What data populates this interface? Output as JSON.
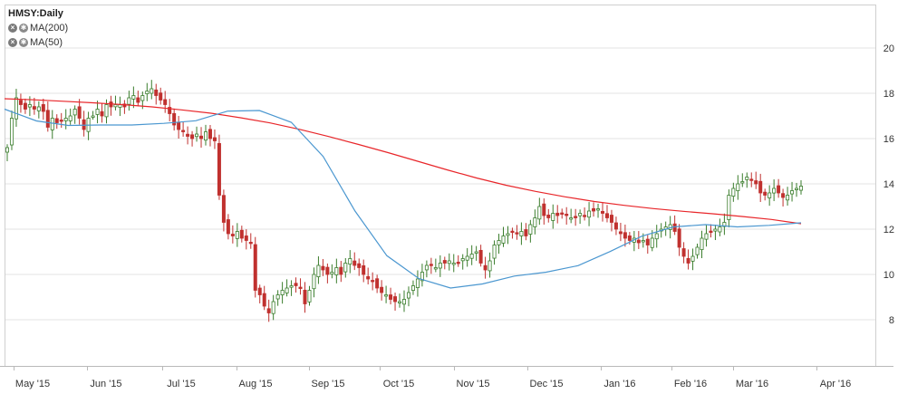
{
  "chart_data": {
    "type": "candlestick",
    "title": "HMSY:Daily",
    "indicators": [
      {
        "name": "MA(200)",
        "color": "#e8262a"
      },
      {
        "name": "MA(50)",
        "color": "#4b97d0"
      }
    ],
    "x_tick_labels": [
      "May '15",
      "Jun '15",
      "Jul '15",
      "Aug '15",
      "Sep '15",
      "Oct '15",
      "Nov '15",
      "Dec '15",
      "Jan '16",
      "Feb '16",
      "Mar '16",
      "Apr '16"
    ],
    "y_tick_labels": [
      8,
      10,
      12,
      14,
      16,
      18,
      20
    ],
    "ylim": [
      5,
      22
    ],
    "y_axis_side": "right",
    "grid": "horizontal",
    "colors": {
      "up": "#3a7d2c",
      "down": "#c0312f",
      "grid": "#e3e3e3"
    },
    "closes": [
      15.6,
      16.9,
      17.8,
      17.5,
      17.3,
      17.5,
      17.3,
      17.4,
      17.2,
      16.5,
      16.9,
      16.7,
      16.8,
      16.9,
      17.0,
      17.3,
      16.9,
      16.4,
      16.9,
      17.0,
      17.3,
      17.0,
      17.5,
      17.4,
      17.5,
      17.5,
      17.4,
      17.8,
      17.9,
      17.6,
      17.9,
      18.1,
      18.2,
      17.9,
      17.7,
      17.5,
      17.1,
      16.6,
      16.4,
      16.3,
      16.1,
      16.0,
      16.2,
      16.0,
      16.3,
      16.0,
      15.9,
      13.5,
      12.3,
      11.8,
      11.7,
      11.9,
      11.6,
      11.5,
      11.4,
      9.3,
      9.1,
      8.6,
      8.3,
      8.8,
      9.1,
      9.3,
      9.4,
      9.5,
      9.5,
      9.4,
      8.7,
      9.3,
      10.0,
      10.4,
      10.2,
      10.0,
      10.1,
      10.3,
      10.0,
      10.5,
      10.7,
      10.4,
      10.3,
      10.0,
      9.8,
      9.7,
      9.4,
      9.2,
      9.1,
      8.9,
      8.8,
      8.8,
      8.9,
      9.2,
      9.5,
      9.8,
      10.1,
      10.4,
      10.4,
      10.3,
      10.5,
      10.5,
      10.6,
      10.5,
      10.5,
      10.7,
      10.8,
      10.9,
      11.0,
      10.5,
      10.2,
      10.6,
      11.3,
      11.5,
      11.7,
      11.8,
      11.9,
      11.8,
      11.9,
      11.7,
      12.2,
      12.5,
      13.0,
      12.6,
      12.5,
      12.7,
      12.6,
      12.7,
      12.6,
      12.5,
      12.5,
      12.7,
      12.6,
      12.8,
      12.8,
      12.9,
      12.7,
      12.5,
      12.3,
      12.0,
      11.8,
      11.6,
      11.5,
      11.6,
      11.4,
      11.5,
      11.3,
      11.6,
      11.8,
      12.0,
      12.1,
      12.2,
      11.9,
      11.2,
      10.8,
      10.5,
      10.8,
      11.2,
      11.6,
      11.8,
      11.9,
      12.0,
      12.1,
      12.3,
      13.5,
      13.8,
      14.0,
      14.1,
      14.3,
      14.2,
      14.0,
      13.6,
      13.5,
      13.6,
      13.8,
      13.6,
      13.4,
      13.5,
      13.7,
      13.8,
      13.9
    ],
    "ma200": [
      17.76,
      17.71,
      17.65,
      17.58,
      17.5,
      17.4,
      17.27,
      17.12,
      16.92,
      16.69,
      16.41,
      16.09,
      15.74,
      15.38,
      15.0,
      14.62,
      14.26,
      13.94,
      13.67,
      13.43,
      13.22,
      13.05,
      12.91,
      12.79,
      12.68,
      12.56,
      12.43,
      12.24
    ],
    "ma50": [
      17.3,
      16.78,
      16.58,
      16.6,
      16.6,
      16.67,
      16.79,
      17.21,
      17.24,
      16.72,
      15.21,
      12.8,
      10.83,
      9.82,
      9.4,
      9.58,
      9.93,
      10.1,
      10.39,
      11.01,
      11.69,
      12.1,
      12.2,
      12.1,
      12.17,
      12.28
    ]
  }
}
